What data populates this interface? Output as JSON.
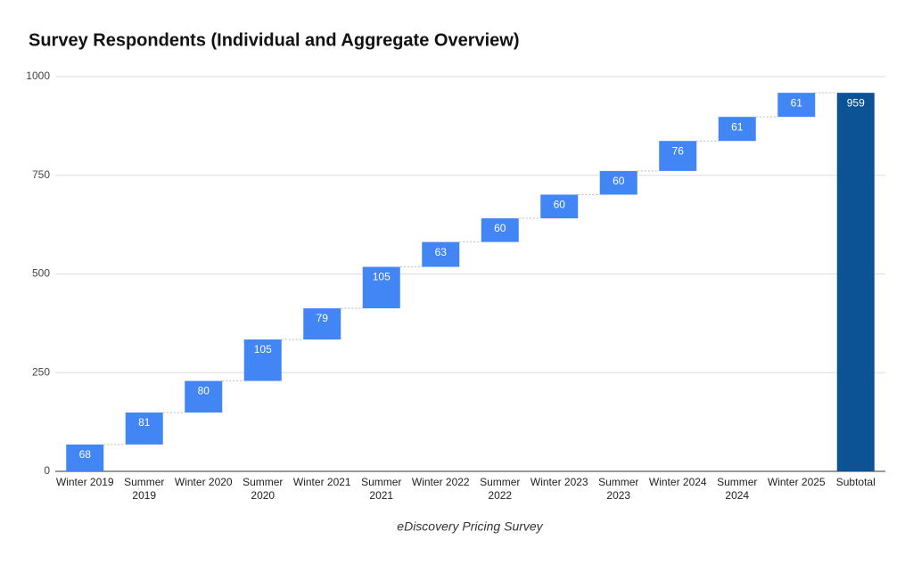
{
  "chart_data": {
    "type": "waterfall",
    "title": "Survey Respondents (Individual and Aggregate Overview)",
    "caption": "eDiscovery Pricing Survey",
    "categories": [
      "Winter 2019",
      "Summer\n2019",
      "Winter 2020",
      "Summer\n2020",
      "Winter 2021",
      "Summer\n2021",
      "Winter 2022",
      "Summer\n2022",
      "Winter 2023",
      "Summer\n2023",
      "Winter 2024",
      "Summer\n2024",
      "Winter 2025"
    ],
    "values": [
      68,
      81,
      80,
      105,
      79,
      105,
      63,
      60,
      60,
      60,
      76,
      61,
      61
    ],
    "color": "#4285f4",
    "total": {
      "label": "Subtotal",
      "value": 959,
      "color": "#0b5394"
    },
    "ylim": [
      0,
      1000
    ],
    "yticks": [
      0,
      250,
      500,
      750,
      1000
    ],
    "grid": true
  }
}
